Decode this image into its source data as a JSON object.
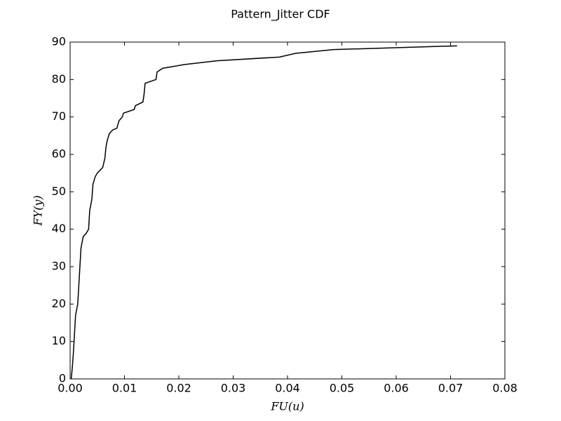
{
  "chart_data": {
    "type": "line",
    "title": "Pattern_Jitter CDF",
    "xlabel": "FU(u)",
    "ylabel": "FY(y)",
    "x": [
      0.0002,
      0.0004,
      0.0006,
      0.0008,
      0.001,
      0.0014,
      0.0016,
      0.0018,
      0.002,
      0.0024,
      0.003,
      0.0034,
      0.0036,
      0.004,
      0.0042,
      0.0046,
      0.005,
      0.006,
      0.0064,
      0.0066,
      0.0068,
      0.0072,
      0.0078,
      0.0086,
      0.009,
      0.0096,
      0.0098,
      0.0118,
      0.012,
      0.0134,
      0.0136,
      0.0138,
      0.0158,
      0.016,
      0.017,
      0.021,
      0.027,
      0.0385,
      0.0415,
      0.0485,
      0.0712
    ],
    "values": [
      0,
      3,
      7,
      12,
      17,
      20,
      25,
      30,
      35,
      38,
      39,
      40,
      45,
      48,
      52,
      54,
      55,
      56.5,
      59,
      62,
      63.5,
      65.5,
      66.5,
      67,
      69,
      70,
      71,
      72,
      73,
      74,
      76,
      79,
      80,
      82,
      83,
      84,
      85,
      86,
      87,
      88,
      89
    ],
    "color": "#000000",
    "xlim": [
      0,
      0.08
    ],
    "xticks": [
      {
        "value": 0,
        "label": "0.00"
      },
      {
        "value": 0.01,
        "label": "0.01"
      },
      {
        "value": 0.02,
        "label": "0.02"
      },
      {
        "value": 0.03,
        "label": "0.03"
      },
      {
        "value": 0.04,
        "label": "0.04"
      },
      {
        "value": 0.05,
        "label": "0.05"
      },
      {
        "value": 0.06,
        "label": "0.06"
      },
      {
        "value": 0.07,
        "label": "0.07"
      },
      {
        "value": 0.08,
        "label": "0.08"
      }
    ],
    "ylim": [
      0,
      90
    ],
    "yticks": [
      0,
      10,
      20,
      30,
      40,
      50,
      60,
      70,
      80,
      90
    ],
    "grid": false
  }
}
